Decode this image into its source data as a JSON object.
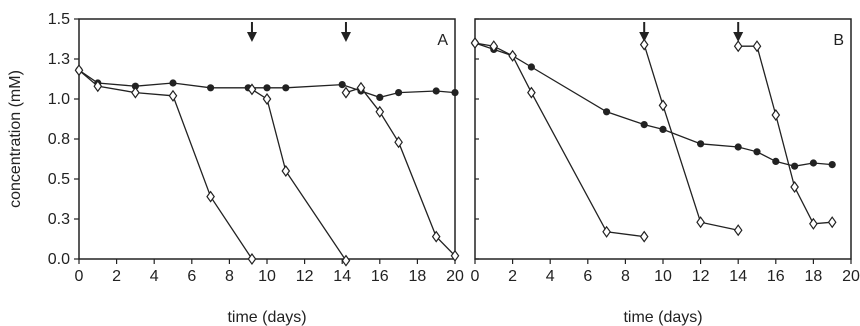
{
  "chart_data": [
    {
      "type": "line",
      "panel_label": "A",
      "xlabel": "time (days)",
      "ylabel": "concentration (mM)",
      "xlim": [
        0,
        20
      ],
      "ylim": [
        0,
        1.5
      ],
      "xticks": [
        0,
        2,
        4,
        6,
        8,
        10,
        12,
        14,
        16,
        18,
        20
      ],
      "yticks": [
        "0.0",
        "0.3",
        "0.5",
        "0.8",
        "1.0",
        "1.3",
        "1.5"
      ],
      "ytick_values": [
        0,
        0.25,
        0.5,
        0.75,
        1.0,
        1.25,
        1.5
      ],
      "arrows_at_x": [
        9.2,
        14.2
      ],
      "grid": false,
      "series": [
        {
          "marker": "filled-circle",
          "x": [
            0,
            1,
            3,
            5,
            7,
            9,
            10,
            11,
            14,
            15,
            16,
            17,
            19,
            20
          ],
          "y": [
            1.18,
            1.1,
            1.08,
            1.1,
            1.07,
            1.07,
            1.07,
            1.07,
            1.09,
            1.05,
            1.01,
            1.04,
            1.05,
            1.04
          ]
        },
        {
          "marker": "open-diamond",
          "x": [
            0,
            1,
            3,
            5,
            7,
            9.2
          ],
          "y": [
            1.18,
            1.08,
            1.04,
            1.02,
            0.39,
            0.0
          ]
        },
        {
          "marker": "open-diamond",
          "x": [
            9.2,
            10,
            11,
            14.2
          ],
          "y": [
            1.06,
            1.0,
            0.55,
            -0.01
          ]
        },
        {
          "marker": "open-diamond",
          "x": [
            14.2,
            15,
            16,
            17,
            19,
            20
          ],
          "y": [
            1.04,
            1.07,
            0.92,
            0.73,
            0.14,
            0.02
          ]
        }
      ]
    },
    {
      "type": "line",
      "panel_label": "B",
      "xlabel": "time (days)",
      "ylabel": "",
      "xlim": [
        0,
        20
      ],
      "ylim": [
        0,
        1.5
      ],
      "xticks": [
        0,
        2,
        4,
        6,
        8,
        10,
        12,
        14,
        16,
        18,
        20
      ],
      "arrows_at_x": [
        9,
        14
      ],
      "grid": false,
      "series": [
        {
          "marker": "filled-circle",
          "x": [
            0,
            1,
            2,
            3,
            7,
            9,
            10,
            12,
            14,
            15,
            16,
            17,
            18,
            19
          ],
          "y": [
            1.35,
            1.31,
            1.27,
            1.2,
            0.92,
            0.84,
            0.81,
            0.72,
            0.7,
            0.67,
            0.61,
            0.58,
            0.6,
            0.59
          ]
        },
        {
          "marker": "open-diamond",
          "x": [
            0,
            1,
            2,
            3,
            7,
            9
          ],
          "y": [
            1.35,
            1.33,
            1.27,
            1.04,
            0.17,
            0.14
          ]
        },
        {
          "marker": "open-diamond",
          "x": [
            9,
            10,
            12,
            14
          ],
          "y": [
            1.34,
            0.96,
            0.23,
            0.18
          ]
        },
        {
          "marker": "open-diamond",
          "x": [
            14,
            15,
            16,
            17,
            18,
            19
          ],
          "y": [
            1.33,
            1.33,
            0.9,
            0.45,
            0.22,
            0.23
          ]
        }
      ]
    }
  ]
}
